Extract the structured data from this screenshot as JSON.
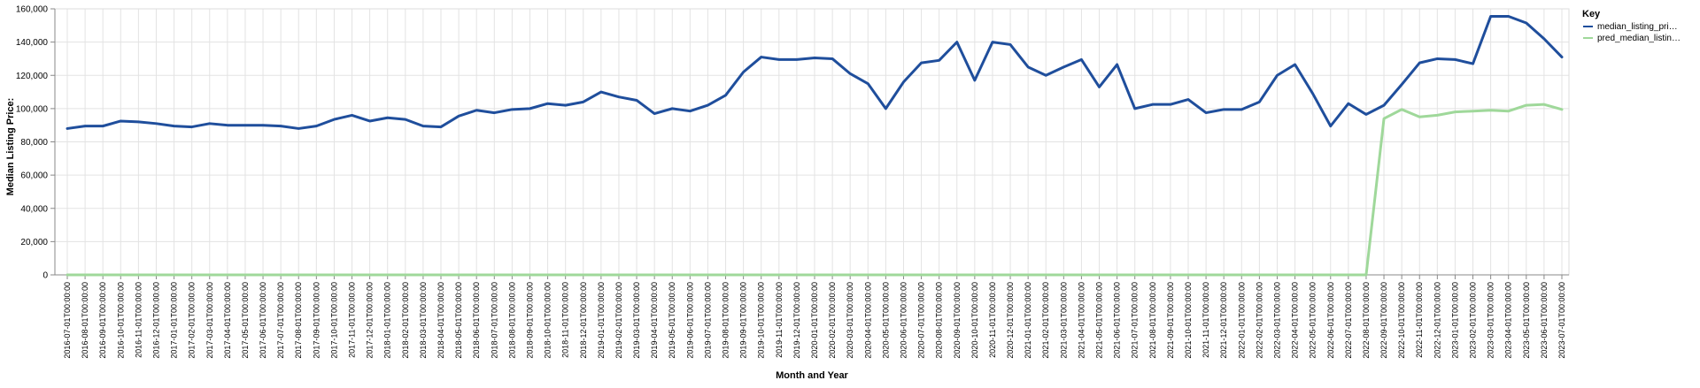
{
  "chart_data": {
    "type": "line",
    "xlabel": "Month and Year",
    "ylabel": "Median Listing Price:",
    "ylim": [
      0,
      160000
    ],
    "yticks": [
      0,
      20000,
      40000,
      60000,
      80000,
      100000,
      120000,
      140000,
      160000
    ],
    "ytick_labels": [
      "0",
      "20,000",
      "40,000",
      "60,000",
      "80,000",
      "100,000",
      "120,000",
      "140,000",
      "160,000"
    ],
    "grid": true,
    "legend_position": "top-right",
    "legend_title": "Key",
    "x": [
      "2016-07-01T00:00:00",
      "2016-08-01T00:00:00",
      "2016-09-01T00:00:00",
      "2016-10-01T00:00:00",
      "2016-11-01T00:00:00",
      "2016-12-01T00:00:00",
      "2017-01-01T00:00:00",
      "2017-02-01T00:00:00",
      "2017-03-01T00:00:00",
      "2017-04-01T00:00:00",
      "2017-05-01T00:00:00",
      "2017-06-01T00:00:00",
      "2017-07-01T00:00:00",
      "2017-08-01T00:00:00",
      "2017-09-01T00:00:00",
      "2017-10-01T00:00:00",
      "2017-11-01T00:00:00",
      "2017-12-01T00:00:00",
      "2018-01-01T00:00:00",
      "2018-02-01T00:00:00",
      "2018-03-01T00:00:00",
      "2018-04-01T00:00:00",
      "2018-05-01T00:00:00",
      "2018-06-01T00:00:00",
      "2018-07-01T00:00:00",
      "2018-08-01T00:00:00",
      "2018-09-01T00:00:00",
      "2018-10-01T00:00:00",
      "2018-11-01T00:00:00",
      "2018-12-01T00:00:00",
      "2019-01-01T00:00:00",
      "2019-02-01T00:00:00",
      "2019-03-01T00:00:00",
      "2019-04-01T00:00:00",
      "2019-05-01T00:00:00",
      "2019-06-01T00:00:00",
      "2019-07-01T00:00:00",
      "2019-08-01T00:00:00",
      "2019-09-01T00:00:00",
      "2019-10-01T00:00:00",
      "2019-11-01T00:00:00",
      "2019-12-01T00:00:00",
      "2020-01-01T00:00:00",
      "2020-02-01T00:00:00",
      "2020-03-01T00:00:00",
      "2020-04-01T00:00:00",
      "2020-05-01T00:00:00",
      "2020-06-01T00:00:00",
      "2020-07-01T00:00:00",
      "2020-08-01T00:00:00",
      "2020-09-01T00:00:00",
      "2020-10-01T00:00:00",
      "2020-11-01T00:00:00",
      "2020-12-01T00:00:00",
      "2021-01-01T00:00:00",
      "2021-02-01T00:00:00",
      "2021-03-01T00:00:00",
      "2021-04-01T00:00:00",
      "2021-05-01T00:00:00",
      "2021-06-01T00:00:00",
      "2021-07-01T00:00:00",
      "2021-08-01T00:00:00",
      "2021-09-01T00:00:00",
      "2021-10-01T00:00:00",
      "2021-11-01T00:00:00",
      "2021-12-01T00:00:00",
      "2022-01-01T00:00:00",
      "2022-02-01T00:00:00",
      "2022-03-01T00:00:00",
      "2022-04-01T00:00:00",
      "2022-05-01T00:00:00",
      "2022-06-01T00:00:00",
      "2022-07-01T00:00:00",
      "2022-08-01T00:00:00",
      "2022-09-01T00:00:00",
      "2022-10-01T00:00:00",
      "2022-11-01T00:00:00",
      "2022-12-01T00:00:00",
      "2023-01-01T00:00:00",
      "2023-02-01T00:00:00",
      "2023-03-01T00:00:00",
      "2023-04-01T00:00:00",
      "2023-05-01T00:00:00",
      "2023-06-01T00:00:00",
      "2023-07-01T00:00:00"
    ],
    "series": [
      {
        "name": "median_listing_pri…",
        "color": "#1f4e9c",
        "values": [
          88000,
          89500,
          89500,
          92500,
          92000,
          91000,
          89500,
          89000,
          91000,
          90000,
          90000,
          90000,
          89500,
          88000,
          89500,
          93500,
          96000,
          92500,
          94500,
          93500,
          89500,
          89000,
          95500,
          99000,
          97500,
          99500,
          100000,
          103000,
          102000,
          104000,
          110000,
          107000,
          105000,
          97000,
          100000,
          98500,
          102000,
          108000,
          122000,
          131000,
          129500,
          129500,
          130500,
          130000,
          121000,
          115000,
          100000,
          116000,
          127500,
          129000,
          140000,
          117000,
          140000,
          138500,
          125000,
          120000,
          125000,
          129500,
          113000,
          126500,
          100000,
          102500,
          102500,
          105500,
          97500,
          99500,
          99500,
          104000,
          120000,
          126500,
          109000,
          89500,
          103000,
          96500,
          102000,
          114500,
          127500,
          130000,
          129500,
          127000,
          155500,
          155500,
          151500,
          142000,
          131000
        ]
      },
      {
        "name": "pred_median_listin…",
        "color": "#9fd89a",
        "values": [
          0,
          0,
          0,
          0,
          0,
          0,
          0,
          0,
          0,
          0,
          0,
          0,
          0,
          0,
          0,
          0,
          0,
          0,
          0,
          0,
          0,
          0,
          0,
          0,
          0,
          0,
          0,
          0,
          0,
          0,
          0,
          0,
          0,
          0,
          0,
          0,
          0,
          0,
          0,
          0,
          0,
          0,
          0,
          0,
          0,
          0,
          0,
          0,
          0,
          0,
          0,
          0,
          0,
          0,
          0,
          0,
          0,
          0,
          0,
          0,
          0,
          0,
          0,
          0,
          0,
          0,
          0,
          0,
          0,
          0,
          0,
          0,
          0,
          0,
          94000,
          99500,
          95000,
          96000,
          98000,
          98500,
          99000,
          98500,
          102000,
          102500,
          99500
        ]
      }
    ]
  }
}
